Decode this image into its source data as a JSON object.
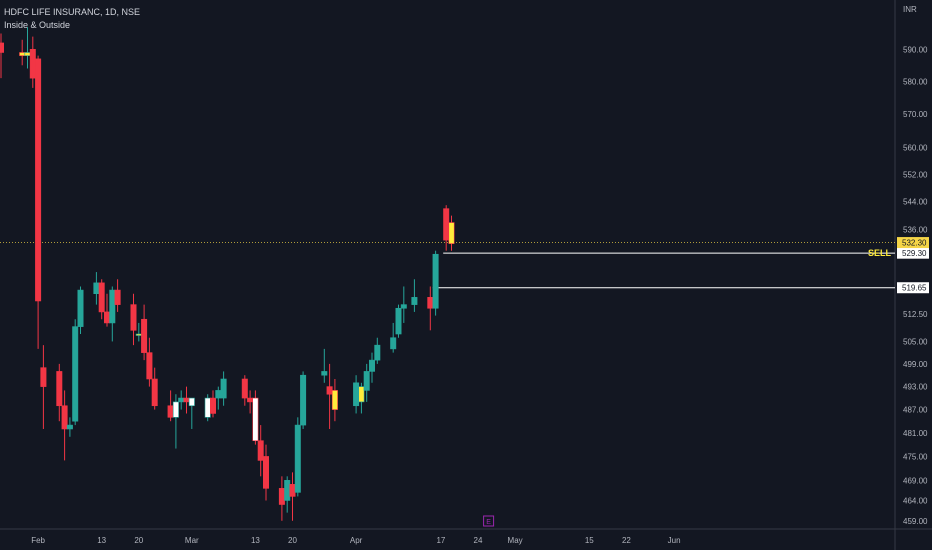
{
  "header": {
    "title": "HDFC LIFE INSURANC, 1D, NSE",
    "indicator": "Inside & Outside"
  },
  "colors": {
    "background": "#131722",
    "up": "#26a69a",
    "down": "#f23645",
    "inside_bar": "#ffeb3b",
    "outside_bar": "#ffffff",
    "axis_text": "#b2b5be",
    "axis_line": "#363a45",
    "current_price_line": "#f5d547",
    "sell_line": "#ffffff",
    "sell_text": "#ffeb3b",
    "event_marker": "#9c27b0"
  },
  "chart_data": {
    "type": "candlestick",
    "symbol": "HDFC LIFE INSURANC",
    "interval": "1D",
    "exchange": "NSE",
    "currency": "INR",
    "ylim": [
      457,
      598
    ],
    "y_scale": "log",
    "y_ticks": [
      "590.00",
      "580.00",
      "570.00",
      "560.00",
      "552.00",
      "544.00",
      "536.00",
      "529.30",
      "512.50",
      "505.00",
      "499.00",
      "493.00",
      "487.00",
      "481.00",
      "475.00",
      "469.00",
      "464.00",
      "459.00"
    ],
    "x_tick_labels": [
      {
        "date": "2024-02-01",
        "label": "Feb"
      },
      {
        "date": "2024-02-13",
        "label": "13"
      },
      {
        "date": "2024-02-20",
        "label": "20"
      },
      {
        "date": "2024-03-01",
        "label": "Mar"
      },
      {
        "date": "2024-03-13",
        "label": "13"
      },
      {
        "date": "2024-03-20",
        "label": "20"
      },
      {
        "date": "2024-04-01",
        "label": "Apr"
      },
      {
        "date": "2024-04-17",
        "label": "17"
      },
      {
        "date": "2024-04-24",
        "label": "24"
      },
      {
        "date": "2024-05-01",
        "label": "May"
      },
      {
        "date": "2024-05-15",
        "label": "15"
      },
      {
        "date": "2024-05-22",
        "label": "22"
      },
      {
        "date": "2024-05-31",
        "label": "Jun"
      }
    ],
    "candles": [
      {
        "date": "2024-01-25",
        "o": 592,
        "h": 595,
        "l": 581,
        "c": 589
      },
      {
        "date": "2024-01-29",
        "o": 589,
        "h": 593,
        "l": 585,
        "c": 588,
        "flag": "inside"
      },
      {
        "date": "2024-01-30",
        "o": 588,
        "h": 597,
        "l": 584,
        "c": 589,
        "flag": "inside"
      },
      {
        "date": "2024-01-31",
        "o": 590,
        "h": 594,
        "l": 578,
        "c": 581
      },
      {
        "date": "2024-02-01",
        "o": 587,
        "h": 588,
        "l": 503,
        "c": 516
      },
      {
        "date": "2024-02-02",
        "o": 498,
        "h": 504,
        "l": 482,
        "c": 493
      },
      {
        "date": "2024-02-05",
        "o": 497,
        "h": 499,
        "l": 484,
        "c": 488
      },
      {
        "date": "2024-02-06",
        "o": 488,
        "h": 492,
        "l": 474,
        "c": 482
      },
      {
        "date": "2024-02-07",
        "o": 482,
        "h": 485,
        "l": 480,
        "c": 483
      },
      {
        "date": "2024-02-08",
        "o": 484,
        "h": 511,
        "l": 483,
        "c": 509
      },
      {
        "date": "2024-02-09",
        "o": 509,
        "h": 520,
        "l": 507,
        "c": 519
      },
      {
        "date": "2024-02-12",
        "o": 518,
        "h": 524,
        "l": 515,
        "c": 521
      },
      {
        "date": "2024-02-13",
        "o": 521,
        "h": 522,
        "l": 511,
        "c": 513
      },
      {
        "date": "2024-02-14",
        "o": 513,
        "h": 518,
        "l": 509,
        "c": 510
      },
      {
        "date": "2024-02-15",
        "o": 510,
        "h": 520,
        "l": 505,
        "c": 519
      },
      {
        "date": "2024-02-16",
        "o": 519,
        "h": 522,
        "l": 513,
        "c": 515
      },
      {
        "date": "2024-02-19",
        "o": 515,
        "h": 518,
        "l": 504,
        "c": 508
      },
      {
        "date": "2024-02-20",
        "o": 507,
        "h": 510,
        "l": 505,
        "c": 507,
        "flag": "inside"
      },
      {
        "date": "2024-02-21",
        "o": 511,
        "h": 515,
        "l": 500,
        "c": 502
      },
      {
        "date": "2024-02-22",
        "o": 502,
        "h": 506,
        "l": 493,
        "c": 495
      },
      {
        "date": "2024-02-23",
        "o": 495,
        "h": 498,
        "l": 487,
        "c": 488
      },
      {
        "date": "2024-02-26",
        "o": 488,
        "h": 492,
        "l": 484,
        "c": 485
      },
      {
        "date": "2024-02-27",
        "o": 485,
        "h": 491,
        "l": 477,
        "c": 489,
        "flag": "outside"
      },
      {
        "date": "2024-02-28",
        "o": 489,
        "h": 492,
        "l": 487,
        "c": 490
      },
      {
        "date": "2024-02-29",
        "o": 490,
        "h": 493,
        "l": 486,
        "c": 489
      },
      {
        "date": "2024-03-01",
        "o": 488,
        "h": 490,
        "l": 482,
        "c": 490,
        "flag": "outside"
      },
      {
        "date": "2024-03-04",
        "o": 485,
        "h": 491,
        "l": 484,
        "c": 490,
        "flag": "outside"
      },
      {
        "date": "2024-03-05",
        "o": 490,
        "h": 492,
        "l": 485,
        "c": 486
      },
      {
        "date": "2024-03-06",
        "o": 490,
        "h": 493,
        "l": 487,
        "c": 492
      },
      {
        "date": "2024-03-07",
        "o": 490,
        "h": 497,
        "l": 488,
        "c": 495
      },
      {
        "date": "2024-03-11",
        "o": 495,
        "h": 496,
        "l": 488,
        "c": 490
      },
      {
        "date": "2024-03-12",
        "o": 490,
        "h": 492,
        "l": 486,
        "c": 489
      },
      {
        "date": "2024-03-13",
        "o": 490,
        "h": 492,
        "l": 478,
        "c": 479,
        "flag": "outside"
      },
      {
        "date": "2024-03-14",
        "o": 479,
        "h": 483,
        "l": 470,
        "c": 474
      },
      {
        "date": "2024-03-15",
        "o": 475,
        "h": 478,
        "l": 464,
        "c": 467
      },
      {
        "date": "2024-03-18",
        "o": 467,
        "h": 470,
        "l": 459,
        "c": 463
      },
      {
        "date": "2024-03-19",
        "o": 464,
        "h": 470,
        "l": 461,
        "c": 469
      },
      {
        "date": "2024-03-20",
        "o": 468,
        "h": 471,
        "l": 459,
        "c": 465
      },
      {
        "date": "2024-03-21",
        "o": 466,
        "h": 485,
        "l": 465,
        "c": 483
      },
      {
        "date": "2024-03-22",
        "o": 483,
        "h": 497,
        "l": 482,
        "c": 496
      },
      {
        "date": "2024-03-26",
        "o": 496,
        "h": 503,
        "l": 494,
        "c": 497
      },
      {
        "date": "2024-03-27",
        "o": 493,
        "h": 499,
        "l": 482,
        "c": 491
      },
      {
        "date": "2024-03-28",
        "o": 492,
        "h": 495,
        "l": 484,
        "c": 487,
        "flag": "inside"
      },
      {
        "date": "2024-04-01",
        "o": 488,
        "h": 496,
        "l": 486,
        "c": 494
      },
      {
        "date": "2024-04-02",
        "o": 489,
        "h": 494,
        "l": 486,
        "c": 493,
        "flag": "inside"
      },
      {
        "date": "2024-04-03",
        "o": 492,
        "h": 499,
        "l": 489,
        "c": 497
      },
      {
        "date": "2024-04-04",
        "o": 497,
        "h": 502,
        "l": 494,
        "c": 500
      },
      {
        "date": "2024-04-05",
        "o": 500,
        "h": 506,
        "l": 499,
        "c": 504
      },
      {
        "date": "2024-04-08",
        "o": 503,
        "h": 510,
        "l": 502,
        "c": 506
      },
      {
        "date": "2024-04-09",
        "o": 507,
        "h": 515,
        "l": 506,
        "c": 514
      },
      {
        "date": "2024-04-10",
        "o": 514,
        "h": 520,
        "l": 510,
        "c": 515
      },
      {
        "date": "2024-04-12",
        "o": 515,
        "h": 522,
        "l": 513,
        "c": 517
      },
      {
        "date": "2024-04-15",
        "o": 517,
        "h": 520,
        "l": 508,
        "c": 514
      },
      {
        "date": "2024-04-16",
        "o": 514,
        "h": 530,
        "l": 512,
        "c": 529
      },
      {
        "date": "2024-04-18",
        "o": 542,
        "h": 543,
        "l": 530,
        "c": 533
      },
      {
        "date": "2024-04-19",
        "o": 538,
        "h": 540,
        "l": 530,
        "c": 532,
        "flag": "inside"
      }
    ],
    "current_price": "532.30",
    "levels": [
      {
        "value": 529.3,
        "label": "529.30",
        "start_date": "2024-04-18",
        "text": "SELL"
      },
      {
        "value": 519.65,
        "label": "519.65",
        "start_date": "2024-04-16",
        "text": ""
      }
    ],
    "event_marker": {
      "date": "2024-04-26",
      "label": "E"
    }
  }
}
